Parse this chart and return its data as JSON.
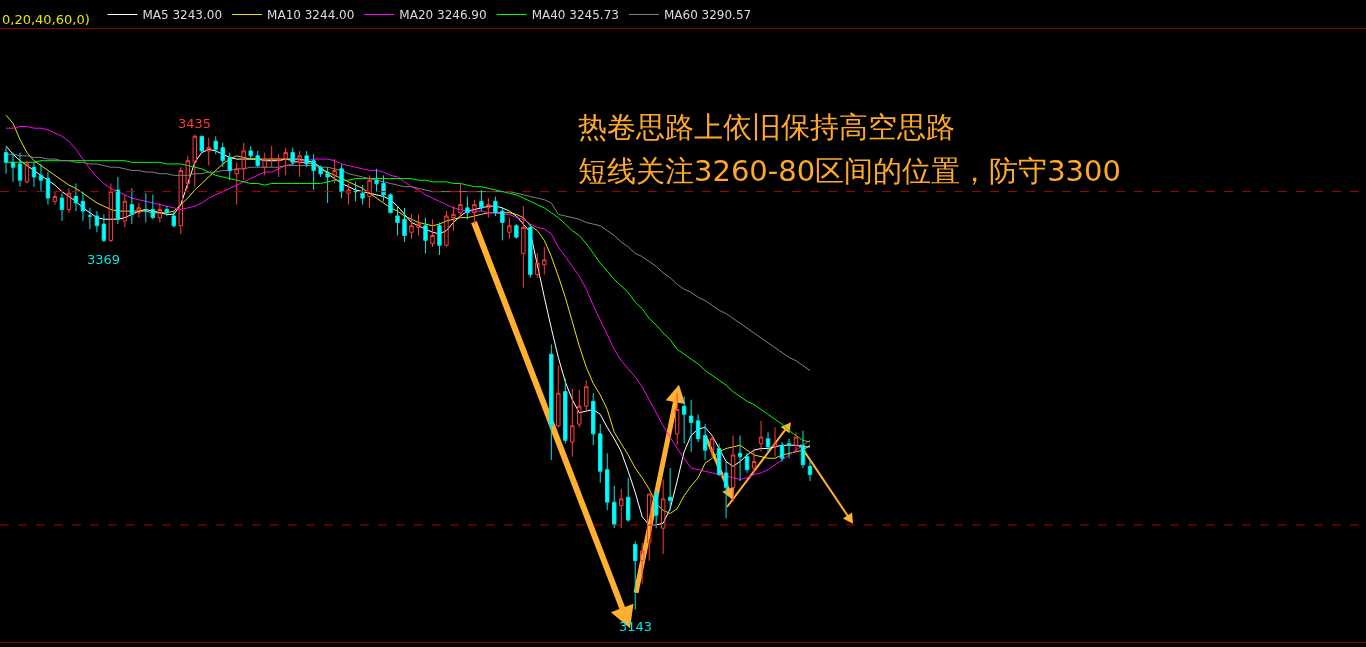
{
  "chart_data": {
    "type": "candlestick",
    "legend": "top left",
    "categories": [
      null,
      null,
      null,
      null,
      null,
      null,
      null,
      null,
      null,
      null,
      null,
      null,
      null,
      null,
      null,
      null,
      null,
      null,
      null,
      null,
      null,
      null,
      null,
      null,
      null,
      null,
      null,
      null,
      null,
      null,
      null,
      null,
      null,
      null,
      null,
      null,
      null,
      null,
      null,
      null,
      null,
      null,
      null,
      null,
      null,
      null,
      null,
      null,
      null,
      null,
      null,
      null,
      null,
      null,
      null,
      null,
      null,
      null,
      null,
      null,
      null,
      null,
      null,
      null,
      null,
      null,
      null,
      null,
      null,
      null,
      null,
      null,
      null,
      null,
      null,
      null,
      null,
      null,
      null,
      null,
      null,
      null,
      null,
      null,
      null,
      null,
      null,
      null,
      null,
      null,
      null,
      null,
      null,
      null,
      null,
      null,
      null,
      null,
      null,
      null,
      null,
      null,
      null,
      null,
      null,
      null,
      null,
      null,
      null,
      null,
      null,
      null,
      null,
      null,
      null,
      null
    ],
    "ohlc": [
      [
        3424,
        3427,
        3411,
        3418
      ],
      [
        3418,
        3424,
        3406,
        3415
      ],
      [
        3417,
        3424,
        3403,
        3407
      ],
      [
        3406,
        3419,
        3405,
        3417
      ],
      [
        3415,
        3418,
        3403,
        3409
      ],
      [
        3410,
        3417,
        3400,
        3407
      ],
      [
        3408,
        3412,
        3392,
        3396
      ],
      [
        3394,
        3400,
        3392,
        3397
      ],
      [
        3396,
        3399,
        3382,
        3389
      ],
      [
        3389,
        3402,
        3387,
        3399
      ],
      [
        3397,
        3405,
        3388,
        3393
      ],
      [
        3394,
        3400,
        3382,
        3388
      ],
      [
        3385,
        3390,
        3377,
        3385
      ],
      [
        3385,
        3388,
        3375,
        3379
      ],
      [
        3380,
        3386,
        3369,
        3370
      ],
      [
        3370,
        3405,
        3369,
        3400
      ],
      [
        3401,
        3409,
        3380,
        3383
      ],
      [
        3382,
        3398,
        3378,
        3394
      ],
      [
        3392,
        3402,
        3380,
        3386
      ],
      [
        3387,
        3393,
        3384,
        3390
      ],
      [
        3388,
        3399,
        3381,
        3388
      ],
      [
        3389,
        3398,
        3383,
        3384
      ],
      [
        3384,
        3393,
        3381,
        3389
      ],
      [
        3389,
        3391,
        3385,
        3387
      ],
      [
        3385,
        3388,
        3378,
        3379
      ],
      [
        3379,
        3415,
        3374,
        3413
      ],
      [
        3405,
        3422,
        3402,
        3419
      ],
      [
        3418,
        3435,
        3403,
        3434
      ],
      [
        3434,
        3434,
        3424,
        3425
      ],
      [
        3425,
        3433,
        3416,
        3427
      ],
      [
        3431,
        3434,
        3423,
        3426
      ],
      [
        3427,
        3430,
        3415,
        3419
      ],
      [
        3421,
        3424,
        3407,
        3413
      ],
      [
        3411,
        3418,
        3392,
        3414
      ],
      [
        3414,
        3430,
        3407,
        3425
      ],
      [
        3425,
        3428,
        3420,
        3422
      ],
      [
        3422,
        3425,
        3415,
        3416
      ],
      [
        3415,
        3424,
        3410,
        3420
      ],
      [
        3420,
        3428,
        3415,
        3420
      ],
      [
        3419,
        3423,
        3409,
        3420
      ],
      [
        3420,
        3427,
        3410,
        3424
      ],
      [
        3424,
        3427,
        3416,
        3418
      ],
      [
        3418,
        3425,
        3409,
        3422
      ],
      [
        3422,
        3425,
        3415,
        3417
      ],
      [
        3419,
        3423,
        3401,
        3413
      ],
      [
        3415,
        3416,
        3409,
        3411
      ],
      [
        3411,
        3415,
        3393,
        3409
      ],
      [
        3410,
        3420,
        3405,
        3413
      ],
      [
        3414,
        3417,
        3396,
        3400
      ],
      [
        3399,
        3405,
        3392,
        3401
      ],
      [
        3400,
        3406,
        3394,
        3400
      ],
      [
        3399,
        3404,
        3392,
        3396
      ],
      [
        3397,
        3410,
        3390,
        3407
      ],
      [
        3407,
        3414,
        3400,
        3405
      ],
      [
        3405,
        3410,
        3394,
        3398
      ],
      [
        3398,
        3399,
        3387,
        3387
      ],
      [
        3385,
        3391,
        3373,
        3381
      ],
      [
        3383,
        3390,
        3369,
        3373
      ],
      [
        3375,
        3386,
        3371,
        3379
      ],
      [
        3378,
        3386,
        3373,
        3380
      ],
      [
        3379,
        3384,
        3362,
        3370
      ],
      [
        3368,
        3383,
        3366,
        3373
      ],
      [
        3379,
        3381,
        3361,
        3367
      ],
      [
        3367,
        3388,
        3366,
        3385
      ],
      [
        3384,
        3391,
        3376,
        3386
      ],
      [
        3387,
        3405,
        3384,
        3392
      ],
      [
        3390,
        3397,
        3383,
        3387
      ],
      [
        3387,
        3395,
        3380,
        3392
      ],
      [
        3394,
        3401,
        3388,
        3390
      ],
      [
        3390,
        3396,
        3384,
        3392
      ],
      [
        3394,
        3397,
        3385,
        3387
      ],
      [
        3388,
        3390,
        3370,
        3381
      ],
      [
        3375,
        3384,
        3371,
        3379
      ],
      [
        3379,
        3380,
        3371,
        3372
      ],
      [
        3362,
        3391,
        3341,
        3378
      ],
      [
        3378,
        3380,
        3347,
        3349
      ],
      [
        3349,
        3362,
        3347,
        3356
      ],
      [
        3355,
        3366,
        3349,
        3358
      ],
      [
        3300,
        3306,
        3235,
        3256
      ],
      [
        3256,
        3293,
        3255,
        3276
      ],
      [
        3277,
        3285,
        3245,
        3247
      ],
      [
        3246,
        3279,
        3237,
        3256
      ],
      [
        3257,
        3278,
        3255,
        3268
      ],
      [
        3268,
        3284,
        3265,
        3280
      ],
      [
        3271,
        3276,
        3244,
        3251
      ],
      [
        3251,
        3257,
        3221,
        3228
      ],
      [
        3229,
        3239,
        3204,
        3209
      ],
      [
        3209,
        3219,
        3193,
        3195
      ],
      [
        3207,
        3217,
        3193,
        3211
      ],
      [
        3212,
        3224,
        3197,
        3198
      ],
      [
        3183,
        3185,
        3143,
        3173
      ],
      [
        3173,
        3184,
        3159,
        3179
      ],
      [
        3184,
        3214,
        3173,
        3214
      ],
      [
        3214,
        3216,
        3193,
        3201
      ],
      [
        3193,
        3223,
        3177,
        3211
      ],
      [
        3212,
        3230,
        3204,
        3210
      ],
      [
        3251,
        3276,
        3244,
        3266
      ],
      [
        3268,
        3274,
        3245,
        3263
      ],
      [
        3262,
        3272,
        3240,
        3258
      ],
      [
        3259,
        3263,
        3246,
        3248
      ],
      [
        3250,
        3257,
        3235,
        3241
      ],
      [
        3241,
        3250,
        3237,
        3248
      ],
      [
        3242,
        3245,
        3225,
        3226
      ],
      [
        3227,
        3234,
        3199,
        3218
      ],
      [
        3218,
        3250,
        3209,
        3238
      ],
      [
        3239,
        3250,
        3222,
        3237
      ],
      [
        3237,
        3239,
        3227,
        3229
      ],
      [
        3230,
        3242,
        3227,
        3234
      ],
      [
        3245,
        3259,
        3240,
        3249
      ],
      [
        3248,
        3252,
        3240,
        3243
      ],
      [
        3243,
        3255,
        3237,
        3245
      ],
      [
        3244,
        3246,
        3234,
        3236
      ],
      [
        3245,
        3248,
        3236,
        3244
      ],
      [
        3244,
        3252,
        3240,
        3249
      ],
      [
        3244,
        3253,
        3230,
        3232
      ],
      [
        3231,
        3235,
        3222,
        3226
      ]
    ],
    "series": [
      {
        "name": "MA5 3243.00",
        "type": "line",
        "color": "#ffffff",
        "values": [
          3428,
          3423,
          3419,
          3416,
          3413,
          3410,
          3407,
          3404,
          3400,
          3397,
          3394,
          3390,
          3387,
          3384,
          3383,
          3383,
          3383,
          3384,
          3386,
          3388,
          3389,
          3388,
          3387,
          3386,
          3386,
          3392,
          3405,
          3418,
          3424,
          3426,
          3425,
          3423,
          3421,
          3420,
          3420,
          3420,
          3420,
          3419,
          3419,
          3419,
          3420,
          3420,
          3420,
          3419,
          3418,
          3415,
          3411,
          3408,
          3405,
          3403,
          3401,
          3400,
          3399,
          3398,
          3397,
          3395,
          3391,
          3386,
          3381,
          3379,
          3377,
          3375,
          3374,
          3376,
          3381,
          3385,
          3388,
          3389,
          3390,
          3391,
          3391,
          3390,
          3388,
          3385,
          3380,
          3375,
          3355,
          3335,
          3316,
          3298,
          3283,
          3272,
          3264,
          3265,
          3266,
          3263,
          3255,
          3248,
          3240,
          3228,
          3215,
          3200,
          3195,
          3195,
          3196,
          3205,
          3222,
          3240,
          3250,
          3254,
          3255,
          3250,
          3242,
          3234,
          3231,
          3234,
          3238,
          3241,
          3242,
          3242,
          3243,
          3244,
          3244,
          3244,
          3243,
          3243
        ]
      },
      {
        "name": "MA10 3244.00",
        "type": "line",
        "color": "#e6e600",
        "values": [
          3447,
          3442,
          3432,
          3424,
          3419,
          3416,
          3413,
          3410,
          3407,
          3404,
          3402,
          3399,
          3396,
          3393,
          3391,
          3389,
          3388,
          3388,
          3388,
          3388,
          3388,
          3387,
          3387,
          3387,
          3388,
          3392,
          3396,
          3401,
          3405,
          3409,
          3413,
          3417,
          3420,
          3422,
          3421,
          3420,
          3420,
          3420,
          3420,
          3420,
          3420,
          3419,
          3418,
          3418,
          3417,
          3414,
          3412,
          3410,
          3408,
          3406,
          3404,
          3402,
          3399,
          3396,
          3393,
          3390,
          3388,
          3385,
          3383,
          3381,
          3380,
          3379,
          3380,
          3382,
          3383,
          3384,
          3384,
          3385,
          3386,
          3387,
          3387,
          3387,
          3387,
          3386,
          3384,
          3379,
          3376,
          3370,
          3360,
          3348,
          3335,
          3320,
          3305,
          3292,
          3282,
          3275,
          3266,
          3252,
          3245,
          3238,
          3230,
          3224,
          3217,
          3208,
          3204,
          3202,
          3205,
          3213,
          3219,
          3224,
          3233,
          3236,
          3240,
          3242,
          3243,
          3244,
          3241,
          3238,
          3237,
          3236,
          3236,
          3238,
          3239,
          3240,
          3241,
          3244
        ]
      },
      {
        "name": "MA20 3246.90",
        "type": "line",
        "color": "#ff00ff",
        "values": [
          3439,
          3439,
          3440,
          3440,
          3439,
          3439,
          3438,
          3436,
          3434,
          3431,
          3426,
          3420,
          3414,
          3409,
          3405,
          3402,
          3400,
          3398,
          3396,
          3395,
          3394,
          3393,
          3392,
          3391,
          3390,
          3389,
          3390,
          3391,
          3393,
          3396,
          3398,
          3400,
          3402,
          3404,
          3406,
          3408,
          3410,
          3412,
          3412,
          3414,
          3416,
          3417,
          3419,
          3419,
          3420,
          3420,
          3420,
          3419,
          3417,
          3416,
          3415,
          3414,
          3413,
          3413,
          3412,
          3410,
          3409,
          3406,
          3403,
          3401,
          3398,
          3396,
          3394,
          3392,
          3390,
          3389,
          3388,
          3388,
          3388,
          3387,
          3387,
          3386,
          3386,
          3384,
          3383,
          3380,
          3378,
          3377,
          3374,
          3366,
          3360,
          3354,
          3348,
          3340,
          3330,
          3321,
          3312,
          3303,
          3296,
          3291,
          3286,
          3280,
          3272,
          3264,
          3256,
          3249,
          3242,
          3236,
          3230,
          3229,
          3228,
          3227,
          3226,
          3225,
          3224,
          3223,
          3224,
          3226,
          3227,
          3229,
          3232,
          3235,
          3238,
          3241,
          3244,
          3247
        ]
      },
      {
        "name": "MA40 3245.73",
        "type": "line",
        "color": "#00ff00",
        "values": [
          3418,
          3418,
          3418,
          3418,
          3418,
          3419,
          3419,
          3419,
          3419,
          3419,
          3419,
          3419,
          3419,
          3419,
          3419,
          3419,
          3419,
          3419,
          3418,
          3418,
          3418,
          3418,
          3418,
          3417,
          3417,
          3417,
          3416,
          3415,
          3414,
          3412,
          3410,
          3409,
          3408,
          3407,
          3406,
          3405,
          3405,
          3404,
          3405,
          3405,
          3405,
          3405,
          3405,
          3405,
          3405,
          3405,
          3406,
          3407,
          3407,
          3407,
          3408,
          3408,
          3408,
          3408,
          3408,
          3408,
          3408,
          3408,
          3408,
          3407,
          3407,
          3406,
          3406,
          3406,
          3405,
          3405,
          3404,
          3403,
          3403,
          3402,
          3401,
          3400,
          3399,
          3398,
          3396,
          3394,
          3392,
          3390,
          3387,
          3384,
          3380,
          3376,
          3373,
          3368,
          3362,
          3356,
          3351,
          3346,
          3342,
          3338,
          3332,
          3328,
          3322,
          3318,
          3313,
          3309,
          3303,
          3300,
          3297,
          3294,
          3290,
          3287,
          3284,
          3281,
          3277,
          3274,
          3271,
          3269,
          3266,
          3263,
          3260,
          3257,
          3253,
          3250,
          3247,
          3246
        ]
      },
      {
        "name": "MA60 3290.57",
        "type": "line",
        "color": "#808080",
        "values": [
          3423,
          3423,
          3422,
          3422,
          3421,
          3421,
          3420,
          3420,
          3419,
          3419,
          3418,
          3418,
          3417,
          3417,
          3416,
          3415,
          3415,
          3414,
          3413,
          3413,
          3412,
          3412,
          3411,
          3411,
          3410,
          3410,
          3410,
          3411,
          3411,
          3412,
          3412,
          3413,
          3413,
          3414,
          3414,
          3415,
          3415,
          3415,
          3415,
          3415,
          3416,
          3416,
          3416,
          3416,
          3416,
          3415,
          3415,
          3414,
          3413,
          3411,
          3410,
          3409,
          3408,
          3407,
          3406,
          3405,
          3404,
          3403,
          3403,
          3402,
          3401,
          3400,
          3400,
          3400,
          3400,
          3400,
          3400,
          3400,
          3400,
          3400,
          3400,
          3400,
          3400,
          3399,
          3398,
          3397,
          3396,
          3395,
          3393,
          3386,
          3385,
          3384,
          3383,
          3381,
          3380,
          3379,
          3376,
          3373,
          3369,
          3366,
          3362,
          3360,
          3357,
          3354,
          3350,
          3347,
          3343,
          3340,
          3338,
          3335,
          3333,
          3330,
          3327,
          3325,
          3322,
          3319,
          3316,
          3313,
          3310,
          3307,
          3304,
          3301,
          3298,
          3296,
          3293,
          3290
        ]
      }
    ],
    "ref_lines": [
      {
        "axis": "y",
        "value": 3400,
        "color": "#b00000",
        "line_style": "dashed"
      },
      {
        "axis": "y",
        "value": 3195,
        "color": "#b00000",
        "line_style": "dashed"
      }
    ],
    "annotations": [
      "0,20,40,60,0)",
      "热卷思路上依旧保持高空思路",
      "短线关注3260-80区间的位置，防守3300",
      {
        "text": "3435",
        "y": 3435
      },
      {
        "text": "3369",
        "y": 3369
      },
      {
        "text": "3143",
        "y": 3143
      }
    ]
  }
}
